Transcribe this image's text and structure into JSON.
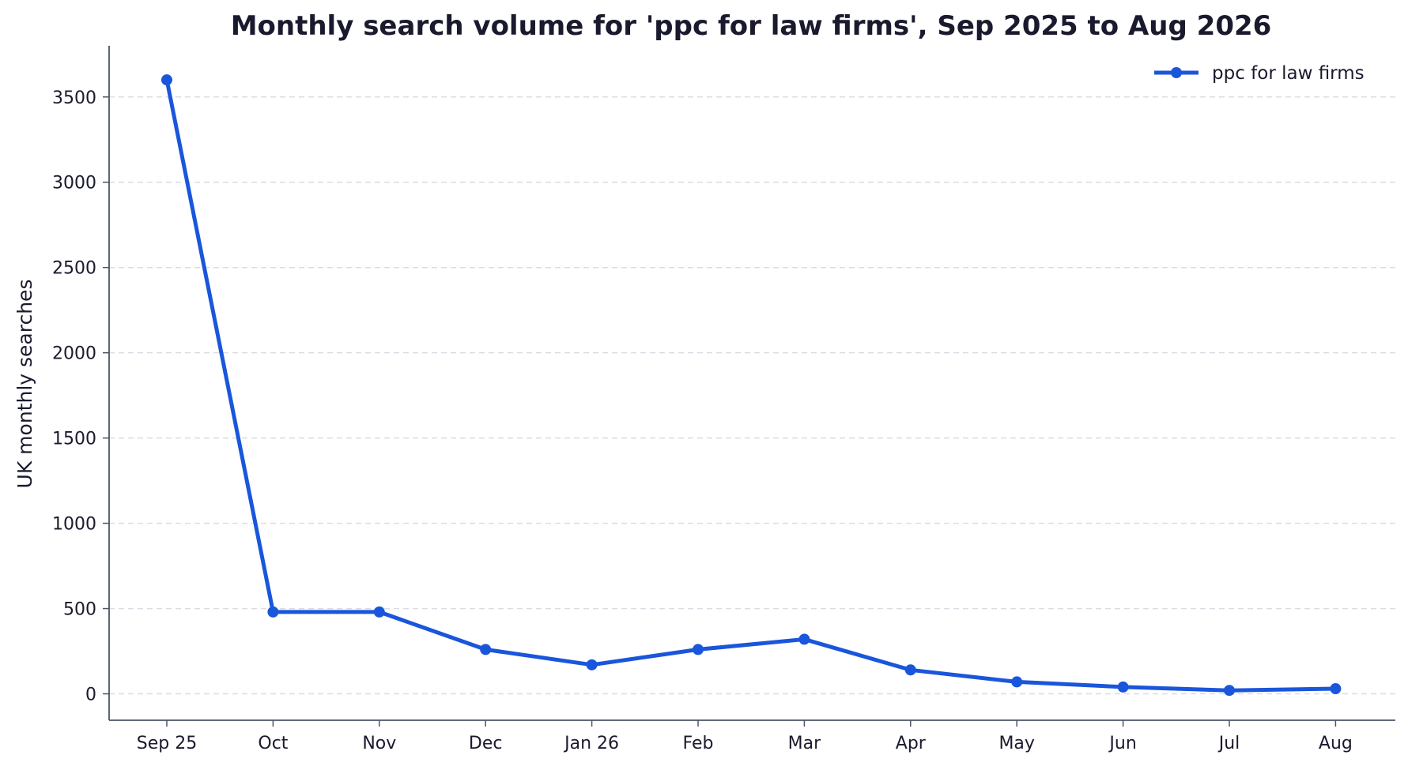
{
  "chart_data": {
    "type": "line",
    "title": "Monthly search volume for 'ppc for law firms', Sep 2025 to Aug 2026",
    "xlabel": "",
    "ylabel": "UK monthly searches",
    "categories": [
      "Sep 25",
      "Oct",
      "Nov",
      "Dec",
      "Jan 26",
      "Feb",
      "Mar",
      "Apr",
      "May",
      "Jun",
      "Jul",
      "Aug"
    ],
    "series": [
      {
        "name": "ppc for law firms",
        "values": [
          3600,
          480,
          480,
          260,
          170,
          260,
          320,
          140,
          70,
          40,
          20,
          30
        ],
        "color": "#1a56db"
      }
    ],
    "ylim": [
      -155,
      3800
    ],
    "yticks": [
      0,
      500,
      1000,
      1500,
      2000,
      2500,
      3000,
      3500
    ],
    "grid": "horizontal dashed",
    "legend_position": "top-right",
    "colors": {
      "text": "#1a1a2e",
      "axis": "#4a5568",
      "grid": "#d9dde3"
    }
  }
}
